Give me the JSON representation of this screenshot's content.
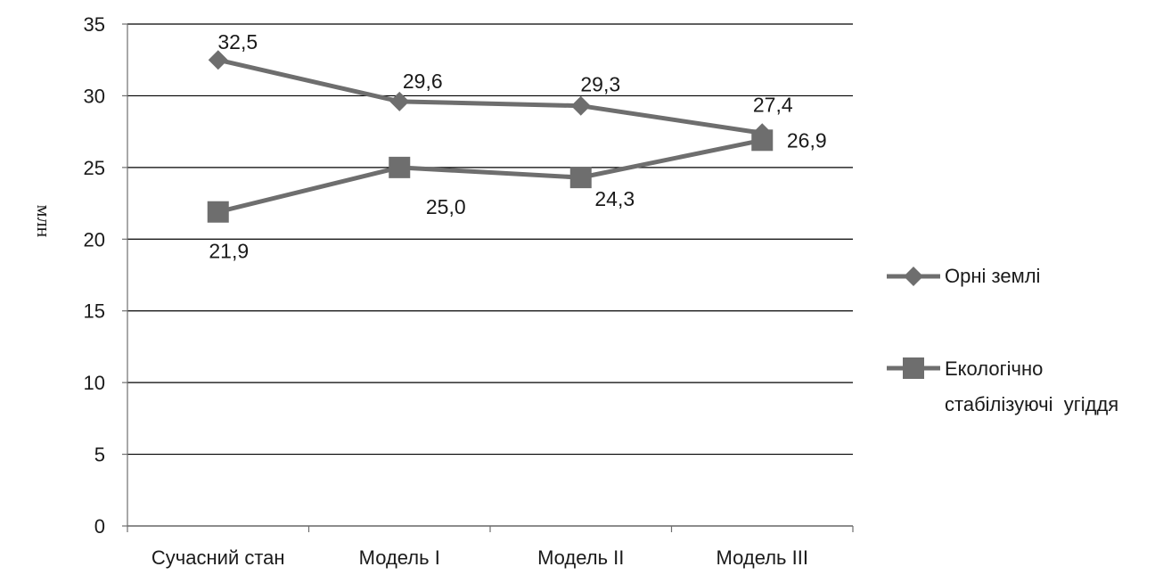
{
  "chart_data": {
    "type": "line",
    "title": "",
    "xlabel": "",
    "ylabel": "млн",
    "categories": [
      "Сучасний стан",
      "Модель I",
      "Модель II",
      "Модель III"
    ],
    "ylim": [
      0,
      35
    ],
    "yticks": [
      0,
      5,
      10,
      15,
      20,
      25,
      30,
      35
    ],
    "grid": true,
    "legend_position": "right",
    "series": [
      {
        "name": "Орні землі",
        "marker": "diamond",
        "color": "#6e6e6e",
        "values": [
          32.5,
          29.6,
          29.3,
          27.4
        ],
        "labels": [
          "32,5",
          "29,6",
          "29,3",
          "27,4"
        ]
      },
      {
        "name_lines": [
          "Екологічно",
          "стабілізуючі  угіддя"
        ],
        "marker": "square",
        "color": "#6e6e6e",
        "values": [
          21.9,
          25.0,
          24.3,
          26.9
        ],
        "labels": [
          "21,9",
          "25,0",
          "24,3",
          "26,9"
        ]
      }
    ]
  }
}
